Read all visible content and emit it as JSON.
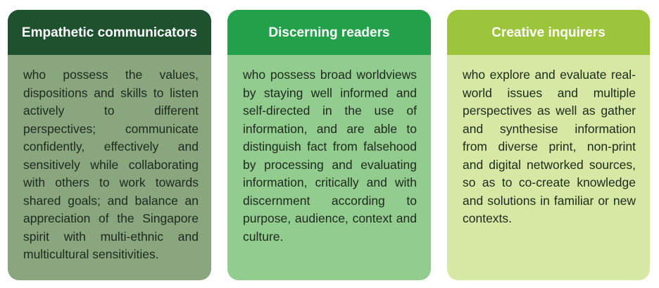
{
  "cards": [
    {
      "title": "Empathetic communicators",
      "body": "who possess the values, dispositions and skills to listen actively to different perspectives; communicate confidently, effectively and sensitively while collaborating with others to work towards shared goals; and balance an appreciation of the Singapore spirit with multi-ethnic and multicultural sensitivities.",
      "header_color": "#1e512e",
      "body_color": "#89a67e"
    },
    {
      "title": "Discerning readers",
      "body": "who possess broad worldviews by staying well informed and self-directed in the use of information, and are able to distinguish fact from falsehood by processing and evaluating information, critically and with discernment according to purpose, audience, context and culture.",
      "header_color": "#23a14a",
      "body_color": "#93cc8f"
    },
    {
      "title": "Creative inquirers",
      "body": "who explore and evaluate real-world issues and multiple perspectives as well as gather and synthesise information from diverse print, non-print and digital networked sources, so as to co-create knowledge and solutions in familiar or new contexts.",
      "header_color": "#9cc53c",
      "body_color": "#d6e8a4"
    }
  ]
}
